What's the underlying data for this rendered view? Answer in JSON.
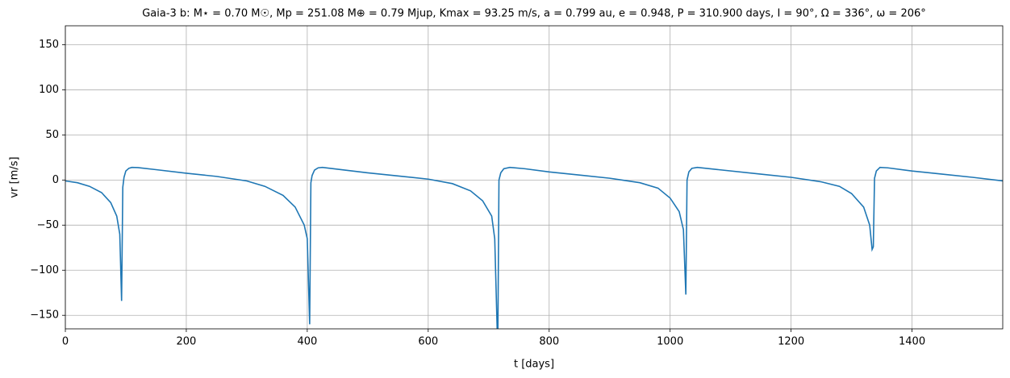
{
  "chart_data": {
    "type": "line",
    "title": "Gaia-3 b: M⋆ = 0.70 M☉, Mp = 251.08 M⊕ = 0.79 Mjup, Kmax = 93.25 m/s, a = 0.799 au, e = 0.948, P = 310.900 days, I = 90°, Ω = 336°, ω = 206°",
    "x_label": "t [days]",
    "y_label": "vr [m/s]",
    "xlim": [
      0,
      1550
    ],
    "ylim": [
      -165,
      171
    ],
    "xticks": [
      0,
      200,
      400,
      600,
      800,
      1000,
      1200,
      1400
    ],
    "yticks": [
      {
        "value": -150,
        "label": "−150"
      },
      {
        "value": -100,
        "label": "−100"
      },
      {
        "value": -50,
        "label": "−50"
      },
      0,
      50,
      100,
      150
    ],
    "grid": true,
    "x": [
      0,
      20,
      40,
      60,
      75,
      85,
      90,
      93,
      95,
      97,
      100,
      105,
      110,
      120,
      150,
      200,
      250,
      300,
      330,
      360,
      380,
      395,
      400,
      404,
      406,
      408,
      412,
      418,
      425,
      450,
      500,
      550,
      600,
      640,
      670,
      690,
      705,
      710,
      715,
      717,
      720,
      725,
      735,
      760,
      800,
      850,
      900,
      950,
      980,
      1000,
      1015,
      1022,
      1026,
      1028,
      1031,
      1036,
      1045,
      1080,
      1150,
      1200,
      1250,
      1280,
      1300,
      1320,
      1330,
      1334,
      1336,
      1338,
      1341,
      1347,
      1360,
      1400,
      1450,
      1500,
      1550
    ],
    "series": [
      {
        "name": "vr",
        "color": "#1f77b4",
        "values": [
          -1,
          -3,
          -7,
          -14,
          -25,
          -40,
          -60,
          -134,
          -8,
          3,
          10,
          13,
          14,
          13.8,
          11.5,
          7.5,
          4,
          -1,
          -7,
          -17,
          -30,
          -50,
          -65,
          -160,
          -3,
          5,
          11,
          13.5,
          14,
          12,
          8,
          4.5,
          1,
          -4,
          -12,
          -23,
          -40,
          -65,
          -190,
          0,
          8,
          12.5,
          14,
          12.5,
          9,
          5.5,
          2,
          -3,
          -9,
          -20,
          -35,
          -55,
          -127,
          0,
          9,
          13,
          14,
          11.5,
          6.5,
          3,
          -2,
          -7,
          -15,
          -30,
          -50,
          -77,
          -74,
          2,
          10,
          14,
          13.5,
          10,
          6.5,
          3,
          -1
        ]
      }
    ]
  }
}
